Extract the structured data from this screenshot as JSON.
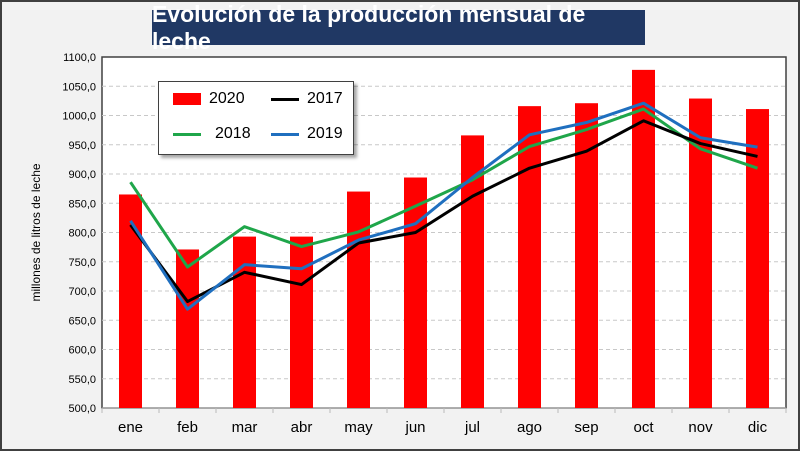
{
  "chart_data": {
    "type": "bar+line",
    "title": "Evolución de la producción mensual de leche",
    "xlabel": "",
    "ylabel": "millones de litros de leche",
    "ylim": [
      500,
      1100
    ],
    "ytick_step": 50,
    "ytick_labels": [
      "500,0",
      "550,0",
      "600,0",
      "650,0",
      "700,0",
      "750,0",
      "800,0",
      "850,0",
      "900,0",
      "950,0",
      "1000,0",
      "1050,0",
      "1100,0"
    ],
    "grid": "horizontal dashed",
    "legend_position": "top-left",
    "categories": [
      "ene",
      "feb",
      "mar",
      "abr",
      "may",
      "jun",
      "jul",
      "ago",
      "sep",
      "oct",
      "nov",
      "dic"
    ],
    "series": [
      {
        "name": "2020",
        "kind": "bar",
        "color": "#ff0000",
        "values": [
          865,
          771,
          793,
          793,
          870,
          894,
          966,
          1016,
          1021,
          1078,
          1029,
          1011
        ]
      },
      {
        "name": "2017",
        "kind": "line",
        "color": "#000000",
        "values": [
          813,
          682,
          732,
          711,
          782,
          800,
          862,
          910,
          939,
          991,
          952,
          930
        ]
      },
      {
        "name": "2018",
        "kind": "line",
        "color": "#1fa64a",
        "values": [
          886,
          741,
          810,
          776,
          801,
          845,
          890,
          947,
          976,
          1011,
          943,
          910
        ]
      },
      {
        "name": "2019",
        "kind": "line",
        "color": "#1f6fbf",
        "values": [
          820,
          669,
          745,
          738,
          787,
          815,
          894,
          967,
          988,
          1021,
          962,
          946
        ]
      }
    ]
  }
}
